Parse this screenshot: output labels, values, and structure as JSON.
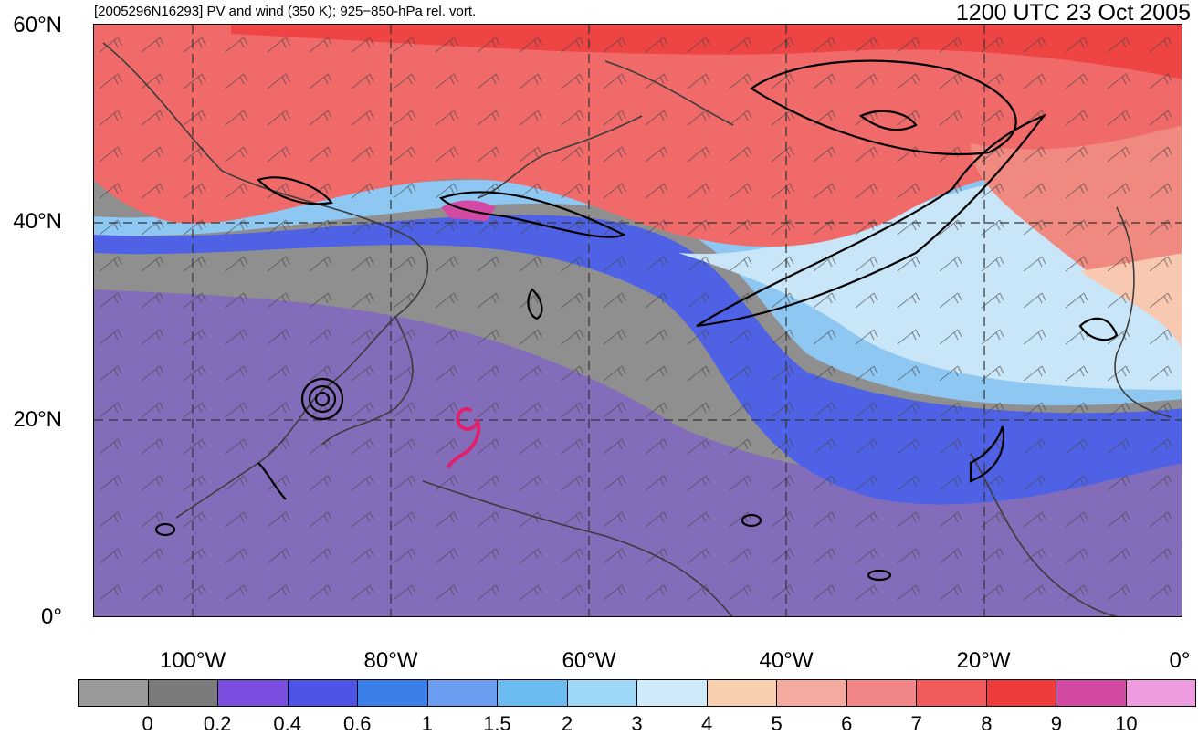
{
  "header": {
    "case_label": "[2005296N16293] PV and wind (350 K); 925−850-hPa rel. vort.",
    "valid_time": "1200 UTC 23 Oct 2005"
  },
  "axes": {
    "lat_labels": [
      "60°N",
      "40°N",
      "20°N",
      "0°"
    ],
    "lon_labels": [
      "100°W",
      "80°W",
      "60°W",
      "40°W",
      "20°W",
      "0°"
    ]
  },
  "colorbar": {
    "colors": [
      "#9a9a9a",
      "#7a7a7a",
      "#7a4fe0",
      "#4e55e6",
      "#3b7fe8",
      "#6b9df0",
      "#6bbbf0",
      "#9fd8f7",
      "#cfeaf8",
      "#f8d0b0",
      "#f5aaa0",
      "#f28585",
      "#f05a5a",
      "#ef3b3b",
      "#d24aa4",
      "#ee9be0"
    ],
    "tick_labels": [
      "0",
      "0.2",
      "0.4",
      "0.6",
      "1",
      "1.5",
      "2",
      "3",
      "4",
      "5",
      "6",
      "7",
      "8",
      "9",
      "10"
    ]
  },
  "storm_symbol": {
    "icon": "tropical-cyclone-icon",
    "color": "#e0206a"
  }
}
